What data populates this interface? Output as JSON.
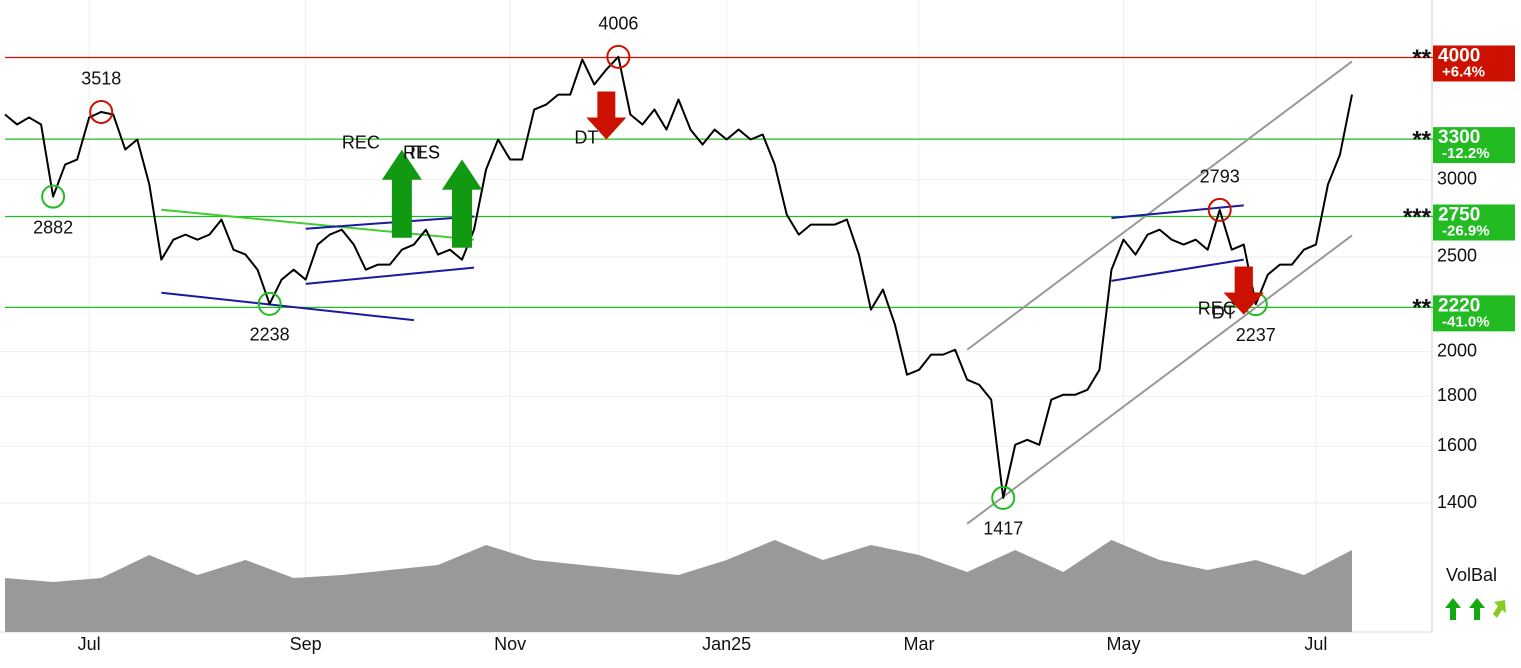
{
  "chart_data": {
    "type": "line",
    "log_scale": true,
    "grid": true,
    "categories": [
      null,
      null,
      null,
      null,
      null,
      null,
      null,
      "Jul",
      null,
      null,
      null,
      null,
      null,
      null,
      null,
      null,
      null,
      null,
      null,
      null,
      null,
      null,
      null,
      null,
      null,
      "Sep",
      null,
      null,
      null,
      null,
      null,
      null,
      null,
      null,
      null,
      null,
      null,
      null,
      null,
      null,
      null,
      null,
      "Nov",
      null,
      null,
      null,
      null,
      null,
      null,
      null,
      null,
      null,
      null,
      null,
      null,
      null,
      null,
      null,
      null,
      null,
      "Jan25",
      null,
      null,
      null,
      null,
      null,
      null,
      null,
      null,
      null,
      null,
      null,
      null,
      null,
      null,
      null,
      "Mar",
      null,
      null,
      null,
      null,
      null,
      null,
      null,
      null,
      null,
      null,
      null,
      null,
      null,
      null,
      null,
      null,
      "May",
      null,
      null,
      null,
      null,
      null,
      null,
      null,
      null,
      null,
      null,
      null,
      null,
      null,
      null,
      null,
      "Jul",
      null,
      null,
      null
    ],
    "series": [
      {
        "color": "#000000",
        "values": [
          3497,
          3416,
          3473,
          3416,
          2882,
          3108,
          3145,
          3473,
          3518,
          3497,
          3220,
          3297,
          2965,
          2484,
          2604,
          2635,
          2604,
          2635,
          2730,
          2543,
          2514,
          2426,
          2238,
          2370,
          2426,
          2370,
          2574,
          2635,
          2666,
          2574,
          2426,
          2455,
          2455,
          2543,
          2574,
          2666,
          2514,
          2543,
          2484,
          2666,
          3072,
          3297,
          3145,
          3145,
          3538,
          3580,
          3665,
          3665,
          3981,
          3753,
          3888,
          4006,
          3497,
          3416,
          3538,
          3375,
          3623,
          3375,
          3258,
          3375,
          3297,
          3375,
          3297,
          3336,
          3108,
          2762,
          2635,
          2698,
          2698,
          2698,
          2730,
          2514,
          2208,
          2315,
          2131,
          1894,
          1916,
          1986,
          1986,
          2009,
          1872,
          1850,
          1786,
          1417,
          1606,
          1625,
          1606,
          1786,
          1807,
          1807,
          1828,
          1916,
          2426,
          2604,
          2514,
          2635,
          2666,
          2604,
          2574,
          2604,
          2543,
          2793,
          2543,
          2574,
          2237,
          2398,
          2455,
          2455,
          2543,
          2574,
          2965,
          3182,
          3665
        ],
        "markers": [
          null,
          null,
          null,
          null,
          "low",
          null,
          null,
          null,
          "high",
          null,
          null,
          null,
          null,
          null,
          null,
          null,
          null,
          null,
          null,
          null,
          null,
          null,
          "low",
          null,
          null,
          null,
          null,
          null,
          null,
          null,
          null,
          null,
          null,
          null,
          null,
          null,
          null,
          null,
          null,
          null,
          null,
          null,
          null,
          null,
          null,
          null,
          null,
          null,
          null,
          null,
          null,
          "high",
          null,
          null,
          null,
          null,
          null,
          null,
          null,
          null,
          null,
          null,
          null,
          null,
          null,
          null,
          null,
          null,
          null,
          null,
          null,
          null,
          null,
          null,
          null,
          null,
          null,
          null,
          null,
          null,
          null,
          null,
          null,
          "low",
          null,
          null,
          null,
          null,
          null,
          null,
          null,
          null,
          null,
          null,
          null,
          null,
          null,
          null,
          null,
          null,
          null,
          "high",
          null,
          null,
          "low",
          null,
          null,
          null,
          null,
          null,
          null,
          null,
          null
        ]
      }
    ],
    "ylim": [
      1320,
      4580
    ],
    "yticks": [
      1400,
      1600,
      1800,
      2000,
      2500,
      3000
    ],
    "levels": [
      {
        "value": 4000,
        "change": "+6.4%",
        "stars": "**",
        "color": "#cc1100"
      },
      {
        "value": 3300,
        "change": "-12.2%",
        "stars": "**",
        "color": "#22bb22"
      },
      {
        "value": 2750,
        "change": "-26.9%",
        "stars": "***",
        "color": "#22bb22"
      },
      {
        "value": 2220,
        "change": "-41.0%",
        "stars": "**",
        "color": "#22bb22"
      }
    ],
    "signals": [
      {
        "label": "REC",
        "direction": "up",
        "index": 33,
        "color": "#119911"
      },
      {
        "label": "RES",
        "direction": "up",
        "index": 38,
        "color": "#119911"
      },
      {
        "label": "TLS",
        "direction": "up",
        "index": 38,
        "color": "#119911"
      },
      {
        "label": "DT",
        "direction": "down",
        "index": 50,
        "color": "#cc1100"
      },
      {
        "label": "REC",
        "direction": "down",
        "index": 103,
        "color": "#cc1100"
      },
      {
        "label": "DT",
        "direction": "down",
        "index": 103,
        "color": "#cc1100"
      }
    ],
    "trendlines": [
      {
        "color": "#999999",
        "from": {
          "index": 80,
          "value": 2009
        },
        "to": {
          "index": 112,
          "value": 3963
        }
      },
      {
        "color": "#999999",
        "from": {
          "index": 80,
          "value": 1333
        },
        "to": {
          "index": 112,
          "value": 2630
        }
      },
      {
        "color": "#1a1aa0",
        "from": {
          "index": 13,
          "value": 2298
        },
        "to": {
          "index": 34,
          "value": 2154
        }
      },
      {
        "color": "#44cc33",
        "from": {
          "index": 13,
          "value": 2794
        },
        "to": {
          "index": 39,
          "value": 2604
        }
      },
      {
        "color": "#1a1aa0",
        "from": {
          "index": 25,
          "value": 2672
        },
        "to": {
          "index": 39,
          "value": 2750
        }
      },
      {
        "color": "#1a1aa0",
        "from": {
          "index": 25,
          "value": 2346
        },
        "to": {
          "index": 39,
          "value": 2438
        }
      },
      {
        "color": "#1a1aa0",
        "from": {
          "index": 92,
          "value": 2740
        },
        "to": {
          "index": 103,
          "value": 2823
        }
      },
      {
        "color": "#1a1aa0",
        "from": {
          "index": 92,
          "value": 2363
        },
        "to": {
          "index": 103,
          "value": 2484
        }
      }
    ],
    "volume_balance": {
      "label": "VolBal",
      "color": "#999999",
      "vlim": [
        0,
        100
      ],
      "values": [
        54,
        50,
        54,
        77,
        57,
        72,
        54,
        57,
        62,
        67,
        87,
        72,
        67,
        62,
        57,
        72,
        92,
        72,
        87,
        77,
        60,
        82,
        60,
        92,
        72,
        62,
        72,
        57,
        82
      ]
    }
  }
}
